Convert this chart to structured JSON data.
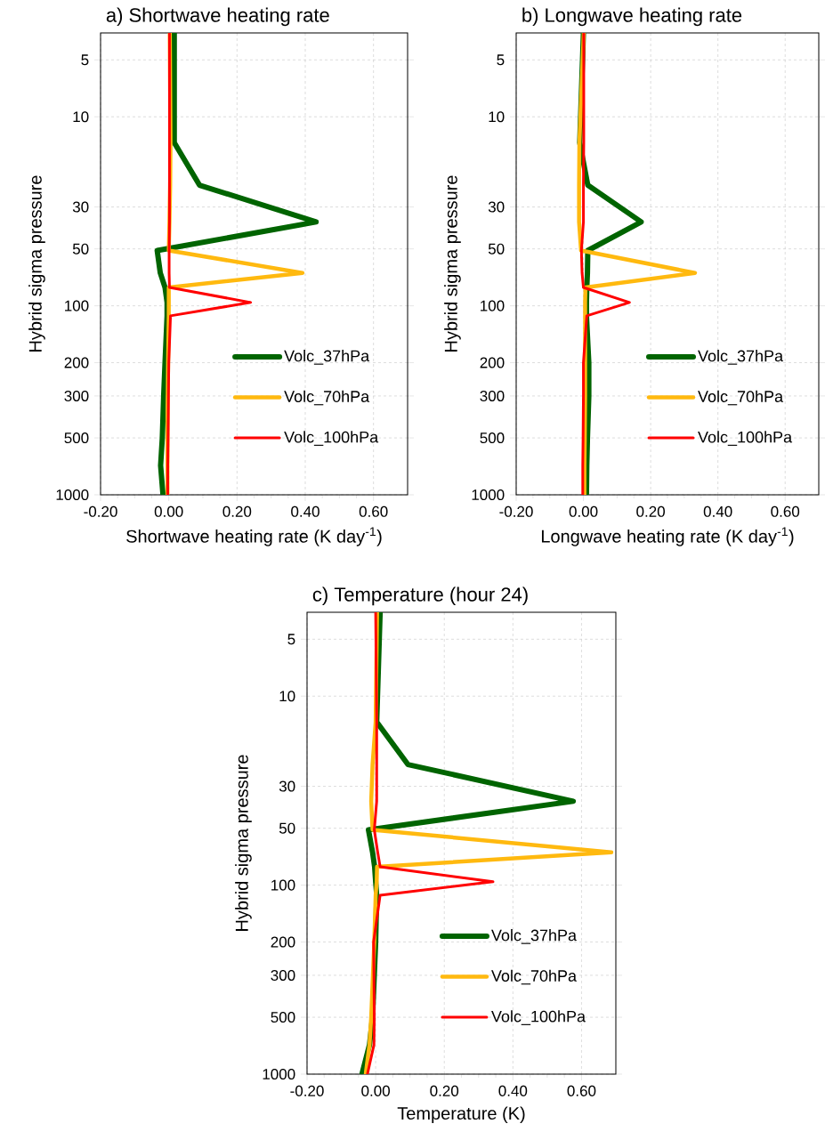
{
  "chart_data": [
    {
      "type": "line",
      "orientation": "horizontal",
      "title": "a) Shortwave heating rate",
      "xlabel": "Shortwave heating rate (K day$^{-1}$)",
      "ylabel": "Hybrid sigma pressure",
      "x": [
        3.6,
        13.7,
        23,
        36,
        51,
        67,
        80,
        96,
        113,
        200,
        300,
        500,
        700,
        1000
      ],
      "series": [
        {
          "name": "Volc_37hPa",
          "color": "#006400",
          "values": [
            0.016,
            0.016,
            0.09,
            0.432,
            -0.034,
            -0.025,
            -0.011,
            -0.005,
            -0.005,
            -0.011,
            -0.015,
            -0.019,
            -0.024,
            -0.017
          ]
        },
        {
          "name": "Volc_70hPa",
          "color": "#ffb90f",
          "values": [
            0.003,
            0.005,
            0.004,
            0.002,
            0.0,
            0.392,
            0.0,
            0.0,
            0.0,
            -0.002,
            -0.003,
            -0.004,
            -0.004,
            -0.004
          ]
        },
        {
          "name": "Volc_100hPa",
          "color": "#ff0000",
          "values": [
            0.002,
            0.002,
            0.002,
            0.002,
            0.001,
            0.001,
            0.002,
            0.24,
            0.005,
            0.0,
            -0.001,
            -0.002,
            -0.003,
            -0.003
          ]
        }
      ],
      "xlim": [
        -0.2,
        0.7
      ],
      "xticks": [
        {
          "value": -0.2,
          "label": "-0.20"
        },
        {
          "value": 0.0,
          "label": "0.00"
        },
        {
          "value": 0.2,
          "label": "0.20"
        },
        {
          "value": 0.4,
          "label": "0.40"
        },
        {
          "value": 0.6,
          "label": "0.60"
        }
      ],
      "ylim": [
        1000,
        3.6
      ],
      "yticks": [
        5,
        10,
        30,
        50,
        100,
        200,
        300,
        500,
        1000
      ],
      "log": "y",
      "grid": true,
      "legend": "right"
    },
    {
      "type": "line",
      "orientation": "horizontal",
      "title": "b) Longwave heating rate",
      "xlabel": "Longwave heating rate (K day$^{-1}$)",
      "ylabel": "Hybrid sigma pressure",
      "x": [
        3.6,
        13.7,
        23,
        36,
        51,
        67,
        80,
        96,
        113,
        200,
        300,
        500,
        700,
        1000
      ],
      "series": [
        {
          "name": "Volc_37hPa",
          "color": "#006400",
          "values": [
            0.0,
            -0.011,
            0.013,
            0.172,
            0.013,
            0.012,
            0.01,
            0.009,
            0.009,
            0.016,
            0.016,
            0.012,
            0.01,
            0.009
          ]
        },
        {
          "name": "Volc_70hPa",
          "color": "#ffb90f",
          "values": [
            0.001,
            -0.012,
            -0.013,
            -0.013,
            -0.007,
            0.332,
            0.006,
            0.005,
            0.005,
            0.005,
            0.005,
            0.004,
            0.003,
            0.003
          ]
        },
        {
          "name": "Volc_100hPa",
          "color": "#ff0000",
          "values": [
            0.001,
            0.001,
            0.0,
            0.0,
            -0.006,
            -0.004,
            0.0,
            0.137,
            0.01,
            0.0,
            0.0,
            -0.001,
            -0.002,
            -0.002
          ]
        }
      ],
      "xlim": [
        -0.2,
        0.7
      ],
      "xticks": [
        {
          "value": -0.2,
          "label": "-0.20"
        },
        {
          "value": 0.0,
          "label": "0.00"
        },
        {
          "value": 0.2,
          "label": "0.20"
        },
        {
          "value": 0.4,
          "label": "0.40"
        },
        {
          "value": 0.6,
          "label": "0.60"
        }
      ],
      "ylim": [
        1000,
        3.6
      ],
      "yticks": [
        5,
        10,
        30,
        50,
        100,
        200,
        300,
        500,
        1000
      ],
      "log": "y",
      "grid": true,
      "legend": "right"
    },
    {
      "type": "line",
      "orientation": "horizontal",
      "title": "c) Temperature (hour 24)",
      "xlabel": "Temperature (K)",
      "ylabel": "Hybrid sigma pressure",
      "x": [
        3.6,
        13.7,
        23,
        36,
        51,
        67,
        80,
        96,
        113,
        200,
        300,
        500,
        700,
        1000
      ],
      "series": [
        {
          "name": "Volc_37hPa",
          "color": "#006400",
          "values": [
            0.013,
            0.003,
            0.094,
            0.576,
            -0.021,
            -0.009,
            -0.003,
            0.0,
            0.003,
            0.0,
            -0.004,
            -0.009,
            -0.018,
            -0.04
          ]
        },
        {
          "name": "Volc_70hPa",
          "color": "#ffb90f",
          "values": [
            0.004,
            0.0,
            -0.009,
            -0.013,
            -0.009,
            0.687,
            0.004,
            0.003,
            0.0,
            -0.004,
            -0.008,
            -0.013,
            -0.018,
            -0.029
          ]
        },
        {
          "name": "Volc_100hPa",
          "color": "#ff0000",
          "values": [
            0.0,
            0.003,
            0.003,
            0.003,
            -0.004,
            0.006,
            0.013,
            0.342,
            0.013,
            -0.006,
            -0.005,
            -0.004,
            -0.005,
            -0.024
          ]
        }
      ],
      "xlim": [
        -0.2,
        0.7
      ],
      "xticks": [
        {
          "value": -0.2,
          "label": "-0.20"
        },
        {
          "value": 0.0,
          "label": "0.00"
        },
        {
          "value": 0.2,
          "label": "0.20"
        },
        {
          "value": 0.4,
          "label": "0.40"
        },
        {
          "value": 0.6,
          "label": "0.60"
        }
      ],
      "ylim": [
        1000,
        3.6
      ],
      "yticks": [
        5,
        10,
        30,
        50,
        100,
        200,
        300,
        500,
        1000
      ],
      "log": "y",
      "grid": true,
      "legend": "right"
    }
  ]
}
